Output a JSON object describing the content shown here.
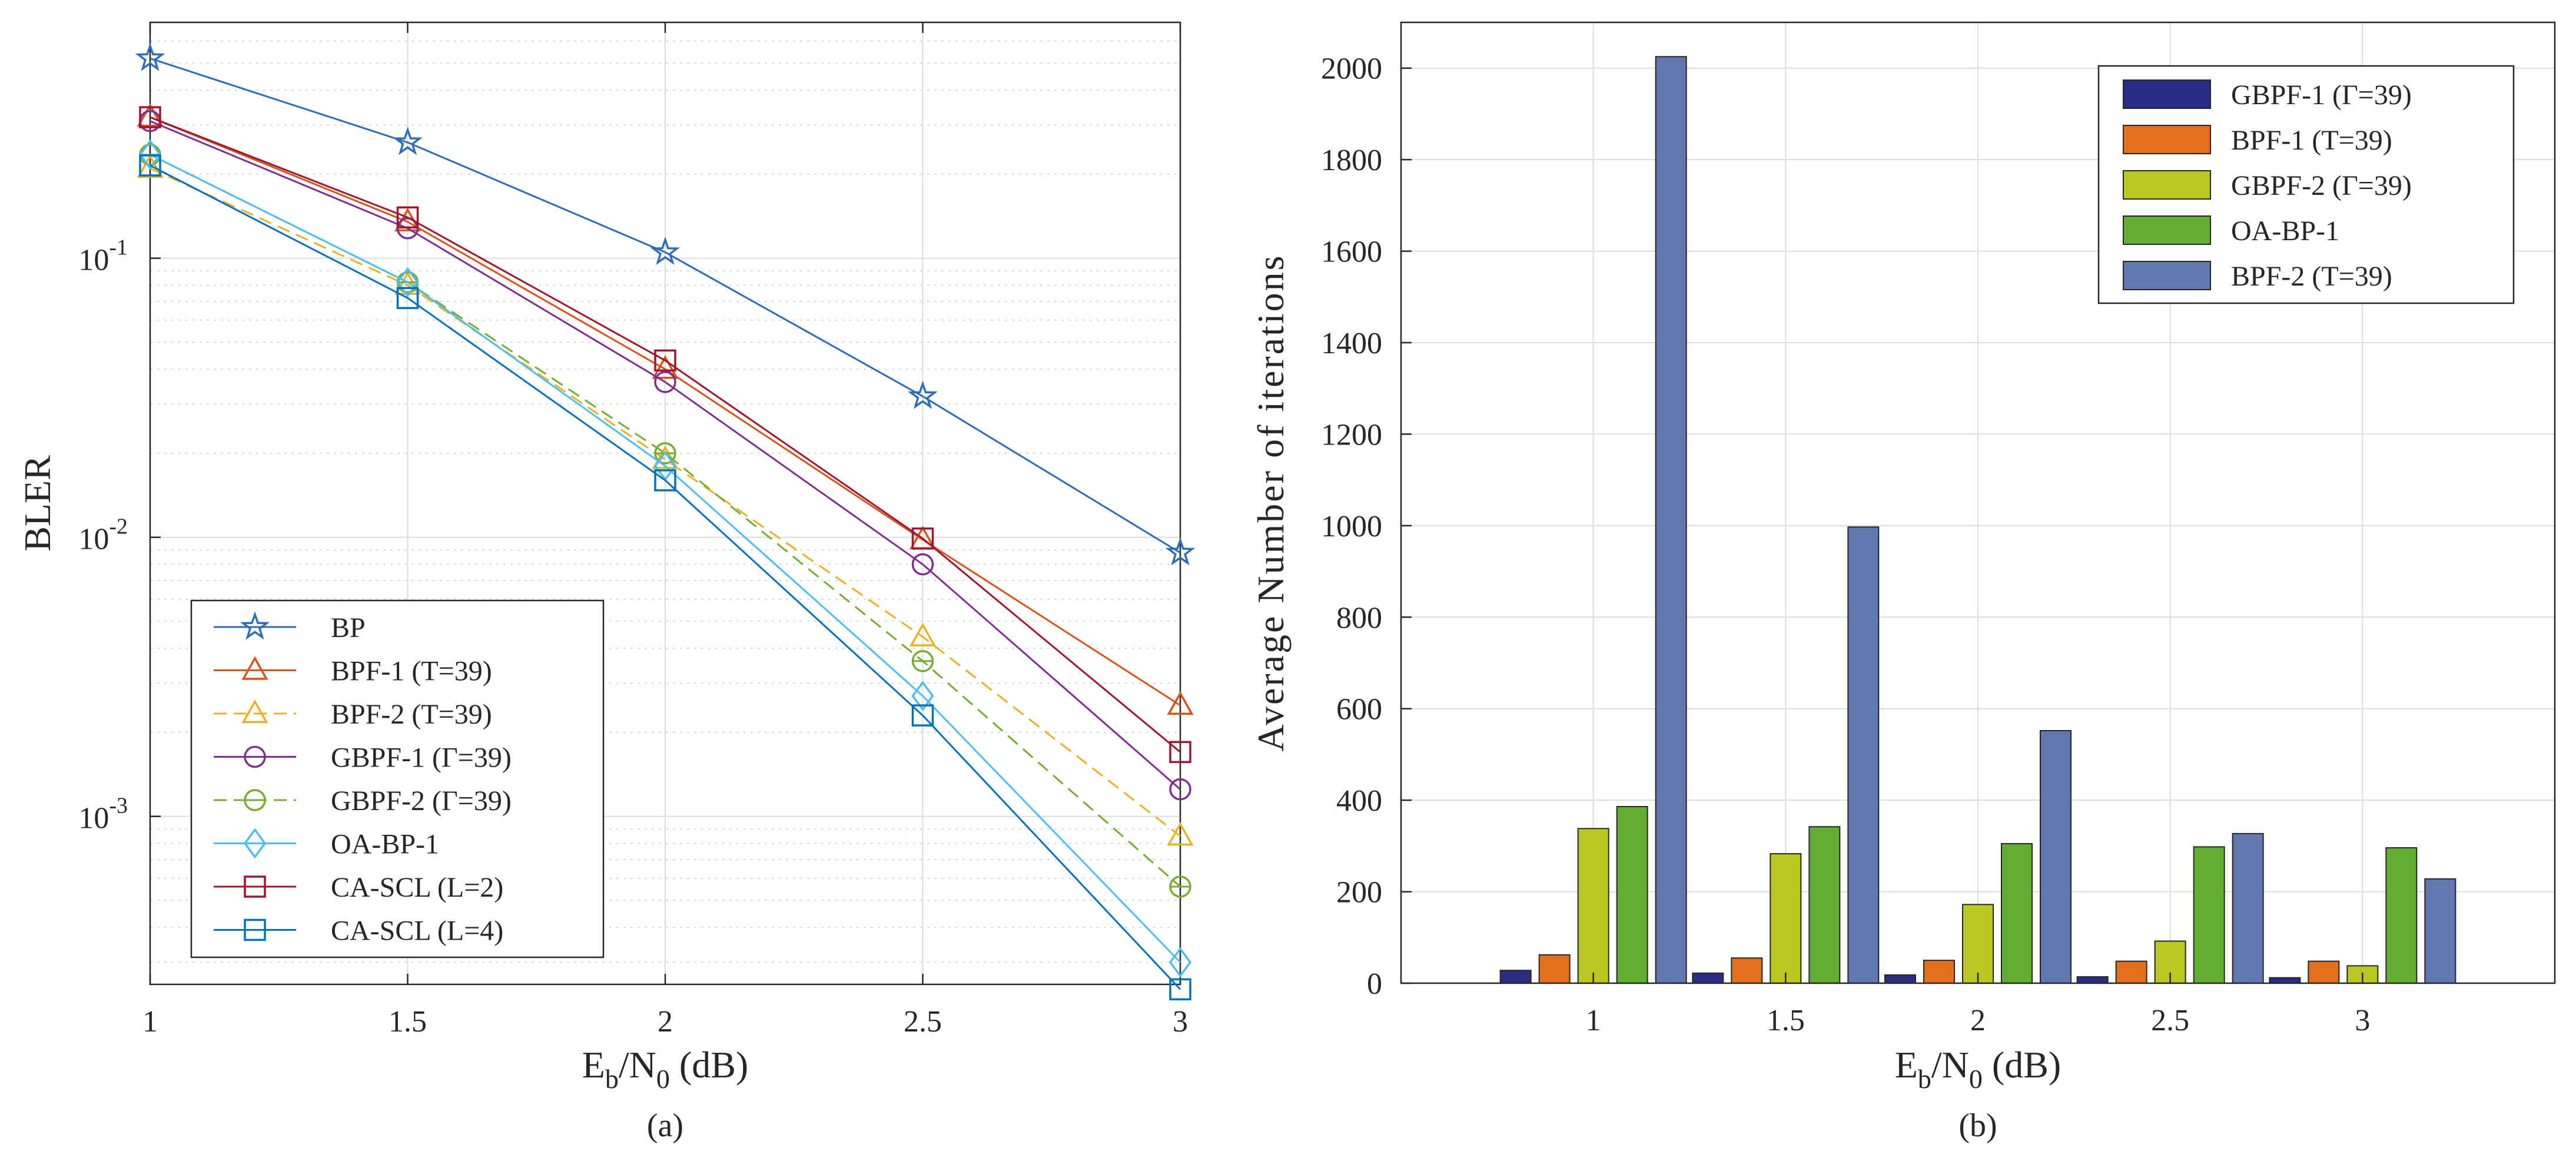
{
  "colors": {
    "BP": "#2e6db5",
    "BPF-1": "#d95319",
    "BPF-2": "#edb120",
    "GBPF-1": "#7e2f8e",
    "GBPF-2": "#77ac30",
    "OA-BP-1": "#4dbeee",
    "CA-SCL2": "#a2142f",
    "CA-SCL4": "#0072bd",
    "bar_GBPF-1": "#2b2d85",
    "bar_BPF-1": "#e36f1e",
    "bar_GBPF-2": "#b8c820",
    "bar_OA-BP-1": "#63ad32",
    "bar_BPF-2": "#6276b0"
  },
  "chart_data": [
    {
      "id": "a",
      "type": "line",
      "caption": "(a)",
      "xlabel": "E_b/N_0 (dB)",
      "ylabel": "BLER",
      "yscale": "log",
      "xlim": [
        1,
        3
      ],
      "ylim": [
        0.00025,
        0.7
      ],
      "xticks": [
        "1",
        "1.5",
        "2",
        "2.5",
        "3"
      ],
      "yticks": [
        {
          "value": 0.1,
          "base": "10",
          "exp": "-1"
        },
        {
          "value": 0.01,
          "base": "10",
          "exp": "-2"
        },
        {
          "value": 0.001,
          "base": "10",
          "exp": "-3"
        }
      ],
      "grid": true,
      "legend_position": "bottom-left",
      "x": [
        1,
        1.5,
        2,
        2.5,
        3
      ],
      "series": [
        {
          "name": "BP",
          "label": "BP",
          "marker": "star",
          "dash": "solid",
          "color_key": "BP",
          "values": [
            0.52,
            0.26,
            0.105,
            0.032,
            0.0088
          ]
        },
        {
          "name": "BPF-1",
          "label": "BPF-1 (T=39)",
          "marker": "triangle",
          "dash": "solid",
          "color_key": "BPF-1",
          "values": [
            0.32,
            0.135,
            0.04,
            0.0098,
            0.0025
          ]
        },
        {
          "name": "BPF-2",
          "label": "BPF-2 (T=39)",
          "marker": "triangle",
          "dash": "dashed",
          "color_key": "BPF-2",
          "values": [
            0.21,
            0.08,
            0.019,
            0.0044,
            0.00085
          ]
        },
        {
          "name": "GBPF-1",
          "label": "GBPF-1 (Γ=39)",
          "marker": "circle",
          "dash": "solid",
          "color_key": "GBPF-1",
          "values": [
            0.31,
            0.128,
            0.036,
            0.008,
            0.00125
          ]
        },
        {
          "name": "GBPF-2",
          "label": "GBPF-2 (Γ=39)",
          "marker": "circle-bar",
          "dash": "dashed",
          "color_key": "GBPF-2",
          "values": [
            0.235,
            0.082,
            0.02,
            0.0036,
            0.00056
          ]
        },
        {
          "name": "OA-BP-1",
          "label": "OA-BP-1",
          "marker": "diamond",
          "dash": "solid",
          "color_key": "OA-BP-1",
          "values": [
            0.235,
            0.082,
            0.018,
            0.0027,
            0.0003
          ]
        },
        {
          "name": "CA-SCL (L=2)",
          "label": "CA-SCL (L=2)",
          "marker": "square",
          "dash": "solid",
          "color_key": "CA-SCL2",
          "values": [
            0.32,
            0.14,
            0.043,
            0.0099,
            0.0017
          ]
        },
        {
          "name": "CA-SCL (L=4)",
          "label": "CA-SCL (L=4)",
          "marker": "square",
          "dash": "solid",
          "color_key": "CA-SCL4",
          "values": [
            0.215,
            0.072,
            0.016,
            0.0023,
            0.00024
          ]
        }
      ]
    },
    {
      "id": "b",
      "type": "bar",
      "caption": "(b)",
      "xlabel": "E_b/N_0 (dB)",
      "ylabel": "Average Number of iterations",
      "ylim": [
        0,
        2100
      ],
      "yticks": [
        0,
        200,
        400,
        600,
        800,
        1000,
        1200,
        1400,
        1600,
        1800,
        2000
      ],
      "categories": [
        "1",
        "1.5",
        "2",
        "2.5",
        "3"
      ],
      "grid": true,
      "legend_position": "top-right",
      "series": [
        {
          "name": "GBPF-1",
          "label": "GBPF-1 (Γ=39)",
          "color_key": "bar_GBPF-1",
          "values": [
            28,
            22,
            18,
            14,
            12
          ]
        },
        {
          "name": "BPF-1",
          "label": "BPF-1 (T=39)",
          "color_key": "bar_BPF-1",
          "values": [
            62,
            55,
            50,
            48,
            48
          ]
        },
        {
          "name": "GBPF-2",
          "label": "GBPF-2 (Γ=39)",
          "color_key": "bar_GBPF-2",
          "values": [
            338,
            283,
            172,
            92,
            38
          ]
        },
        {
          "name": "OA-BP-1",
          "label": "OA-BP-1",
          "color_key": "bar_OA-BP-1",
          "values": [
            386,
            342,
            305,
            298,
            296
          ]
        },
        {
          "name": "BPF-2",
          "label": "BPF-2 (T=39)",
          "color_key": "bar_BPF-2",
          "values": [
            2025,
            997,
            552,
            327,
            228
          ]
        }
      ]
    }
  ]
}
